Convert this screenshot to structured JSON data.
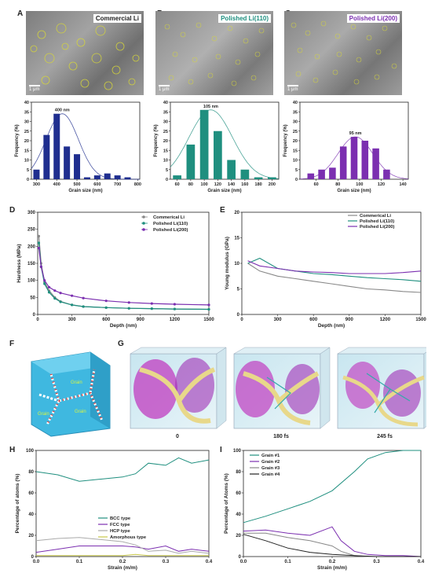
{
  "panels": {
    "A": {
      "label": "A",
      "tag": "Commercial Li",
      "scale": "1 μm"
    },
    "B": {
      "label": "B",
      "tag": "Polished Li(110)",
      "scale": "1 μm"
    },
    "C": {
      "label": "C",
      "tag": "Polished Li(200)",
      "scale": "1 μm"
    },
    "D": {
      "label": "D"
    },
    "E": {
      "label": "E"
    },
    "F": {
      "label": "F",
      "grain_label": "Grain"
    },
    "G": {
      "label": "G",
      "times": [
        "0",
        "180 fs",
        "245 fs"
      ]
    },
    "H": {
      "label": "H"
    },
    "I": {
      "label": "I"
    }
  },
  "colors": {
    "a": "#1f2e8f",
    "b": "#1f8f7f",
    "c": "#7b2fb0",
    "gray": "#888888",
    "yellow": "#c8c84a"
  },
  "chart_data": [
    {
      "id": "A",
      "type": "bar",
      "x": [
        300,
        350,
        400,
        450,
        500,
        550,
        600,
        650,
        700,
        750
      ],
      "values": [
        5,
        23,
        34,
        17,
        13,
        1,
        2,
        3,
        2,
        1
      ],
      "peak_label": "400 nm",
      "xlabel": "Grain size (nm)",
      "ylabel": "Frequency (%)",
      "xticks": [
        300,
        400,
        500,
        600,
        700,
        800
      ],
      "yticks": [
        0,
        5,
        10,
        15,
        20,
        25,
        30,
        35,
        40
      ],
      "xlim": [
        275,
        810
      ],
      "ylim": [
        0,
        40
      ],
      "color": "#1f2e8f"
    },
    {
      "id": "B",
      "type": "bar",
      "x": [
        60,
        80,
        100,
        120,
        140,
        160,
        180,
        200
      ],
      "values": [
        2,
        18,
        36,
        25,
        10,
        5,
        1,
        1
      ],
      "peak_label": "105 nm",
      "xlabel": "Grain size (nm)",
      "ylabel": "Frequency (%)",
      "xticks": [
        60,
        80,
        100,
        120,
        140,
        160,
        180,
        200
      ],
      "yticks": [
        0,
        5,
        10,
        15,
        20,
        25,
        30,
        35,
        40
      ],
      "xlim": [
        50,
        210
      ],
      "ylim": [
        0,
        40
      ],
      "color": "#1f8f7f"
    },
    {
      "id": "C",
      "type": "bar",
      "x": [
        55,
        65,
        75,
        85,
        95,
        105,
        115,
        125
      ],
      "values": [
        3,
        5,
        6,
        17,
        22,
        20,
        16,
        5
      ],
      "peak_label": "95 nm",
      "xlabel": "Grain size (nm)",
      "ylabel": "Frequency (%)",
      "xticks": [
        60,
        80,
        100,
        120,
        140
      ],
      "yticks": [
        0,
        5,
        10,
        15,
        20,
        25,
        30,
        35,
        40
      ],
      "xlim": [
        45,
        145
      ],
      "ylim": [
        0,
        40
      ],
      "color": "#7b2fb0"
    },
    {
      "id": "D",
      "type": "line",
      "xlabel": "Depth (nm)",
      "ylabel": "Hardness (MPa)",
      "xticks": [
        0,
        300,
        600,
        900,
        1200,
        1500
      ],
      "yticks": [
        0,
        50,
        100,
        150,
        200,
        250,
        300
      ],
      "xlim": [
        0,
        1500
      ],
      "ylim": [
        0,
        300
      ],
      "series": [
        {
          "name": "Commerical Li",
          "color": "#888888",
          "x": [
            10,
            30,
            60,
            100,
            150,
            200,
            300,
            400,
            600,
            800,
            1000,
            1200,
            1500
          ],
          "y": [
            230,
            150,
            95,
            70,
            50,
            38,
            28,
            23,
            20,
            18,
            17,
            16,
            15
          ]
        },
        {
          "name": "Polished Li(110)",
          "color": "#1f8f7f",
          "x": [
            10,
            30,
            60,
            100,
            150,
            200,
            300,
            400,
            600,
            800,
            1000,
            1200,
            1500
          ],
          "y": [
            210,
            140,
            90,
            65,
            47,
            37,
            28,
            23,
            20,
            18,
            17,
            16,
            15
          ]
        },
        {
          "name": "Polished Li(200)",
          "color": "#7b2fb0",
          "x": [
            10,
            30,
            60,
            100,
            150,
            200,
            300,
            400,
            600,
            800,
            1000,
            1200,
            1500
          ],
          "y": [
            195,
            140,
            100,
            80,
            70,
            63,
            55,
            48,
            40,
            35,
            32,
            30,
            28
          ]
        }
      ]
    },
    {
      "id": "E",
      "type": "line",
      "xlabel": "Depth (nm)",
      "ylabel": "Young modulus (GPa)",
      "xticks": [
        0,
        300,
        600,
        900,
        1200,
        1500
      ],
      "yticks": [
        0,
        5,
        10,
        15,
        20
      ],
      "xlim": [
        0,
        1500
      ],
      "ylim": [
        0,
        20
      ],
      "series": [
        {
          "name": "Commerical Li",
          "color": "#888888",
          "x": [
            50,
            150,
            300,
            450,
            600,
            750,
            900,
            1050,
            1200,
            1350,
            1500
          ],
          "y": [
            10,
            8.5,
            7.5,
            7,
            6.5,
            6,
            5.5,
            5,
            4.8,
            4.5,
            4.3
          ]
        },
        {
          "name": "Polished Li(110)",
          "color": "#1f8f7f",
          "x": [
            50,
            150,
            300,
            450,
            600,
            750,
            900,
            1050,
            1200,
            1350,
            1500
          ],
          "y": [
            10,
            11,
            9,
            8.5,
            8,
            7.8,
            7.5,
            7.2,
            7,
            6.8,
            6.5
          ]
        },
        {
          "name": "Polished Li(200)",
          "color": "#7b2fb0",
          "x": [
            50,
            150,
            300,
            450,
            600,
            750,
            900,
            1050,
            1200,
            1350,
            1500
          ],
          "y": [
            10.5,
            9.5,
            9,
            8.5,
            8.3,
            8.2,
            8,
            8,
            8,
            8.2,
            8.5
          ]
        }
      ]
    },
    {
      "id": "H",
      "type": "line",
      "xlabel": "Strain (m/m)",
      "ylabel": "Percentage of atoms (%)",
      "xticks": [
        0.0,
        0.1,
        0.2,
        0.3,
        0.4
      ],
      "yticks": [
        0,
        20,
        40,
        60,
        80,
        100
      ],
      "xlim": [
        0,
        0.4
      ],
      "ylim": [
        0,
        100
      ],
      "series": [
        {
          "name": "BCC type",
          "color": "#1f8f7f",
          "x": [
            0,
            0.05,
            0.1,
            0.15,
            0.2,
            0.23,
            0.26,
            0.3,
            0.33,
            0.36,
            0.4
          ],
          "y": [
            80,
            77,
            71,
            73,
            75,
            78,
            88,
            86,
            93,
            88,
            91
          ]
        },
        {
          "name": "FCC type",
          "color": "#7b2fb0",
          "x": [
            0,
            0.05,
            0.1,
            0.15,
            0.2,
            0.23,
            0.26,
            0.3,
            0.33,
            0.36,
            0.4
          ],
          "y": [
            4,
            7,
            10,
            10,
            10,
            9,
            7,
            10,
            5,
            7,
            5
          ]
        },
        {
          "name": "HCP type",
          "color": "#aaaaaa",
          "x": [
            0,
            0.05,
            0.1,
            0.15,
            0.2,
            0.23,
            0.26,
            0.3,
            0.33,
            0.36,
            0.4
          ],
          "y": [
            15,
            17,
            18,
            16,
            14,
            11,
            5,
            6,
            3,
            5,
            3
          ]
        },
        {
          "name": "Amorphous type",
          "color": "#c8c84a",
          "x": [
            0,
            0.05,
            0.1,
            0.15,
            0.2,
            0.23,
            0.26,
            0.3,
            0.33,
            0.36,
            0.4
          ],
          "y": [
            1,
            1,
            1,
            1,
            1,
            2,
            1,
            1,
            1,
            1,
            1
          ]
        }
      ]
    },
    {
      "id": "I",
      "type": "line",
      "xlabel": "Strain (m/m)",
      "ylabel": "Percentage of Atoms (%)",
      "xticks": [
        0.0,
        0.1,
        0.2,
        0.3,
        0.4
      ],
      "yticks": [
        0,
        20,
        40,
        60,
        80,
        100
      ],
      "xlim": [
        0,
        0.4
      ],
      "ylim": [
        0,
        100
      ],
      "series": [
        {
          "name": "Grain #1",
          "color": "#1f8f7f",
          "x": [
            0,
            0.05,
            0.1,
            0.15,
            0.2,
            0.25,
            0.28,
            0.32,
            0.36,
            0.4
          ],
          "y": [
            32,
            38,
            45,
            52,
            62,
            80,
            92,
            98,
            100,
            100
          ]
        },
        {
          "name": "Grain #2",
          "color": "#7b2fb0",
          "x": [
            0,
            0.05,
            0.1,
            0.15,
            0.2,
            0.22,
            0.25,
            0.28,
            0.32,
            0.36,
            0.4
          ],
          "y": [
            24,
            25,
            22,
            20,
            28,
            15,
            5,
            2,
            1,
            1,
            0
          ]
        },
        {
          "name": "Grain #3",
          "color": "#888888",
          "x": [
            0,
            0.05,
            0.1,
            0.15,
            0.2,
            0.22,
            0.25,
            0.28,
            0.32,
            0.4
          ],
          "y": [
            22,
            22,
            18,
            15,
            10,
            5,
            1,
            0,
            0,
            0
          ]
        },
        {
          "name": "Grain #4",
          "color": "#222222",
          "x": [
            0,
            0.05,
            0.1,
            0.15,
            0.2,
            0.25,
            0.3,
            0.4
          ],
          "y": [
            21,
            15,
            8,
            4,
            2,
            1,
            0,
            0
          ]
        }
      ]
    }
  ]
}
